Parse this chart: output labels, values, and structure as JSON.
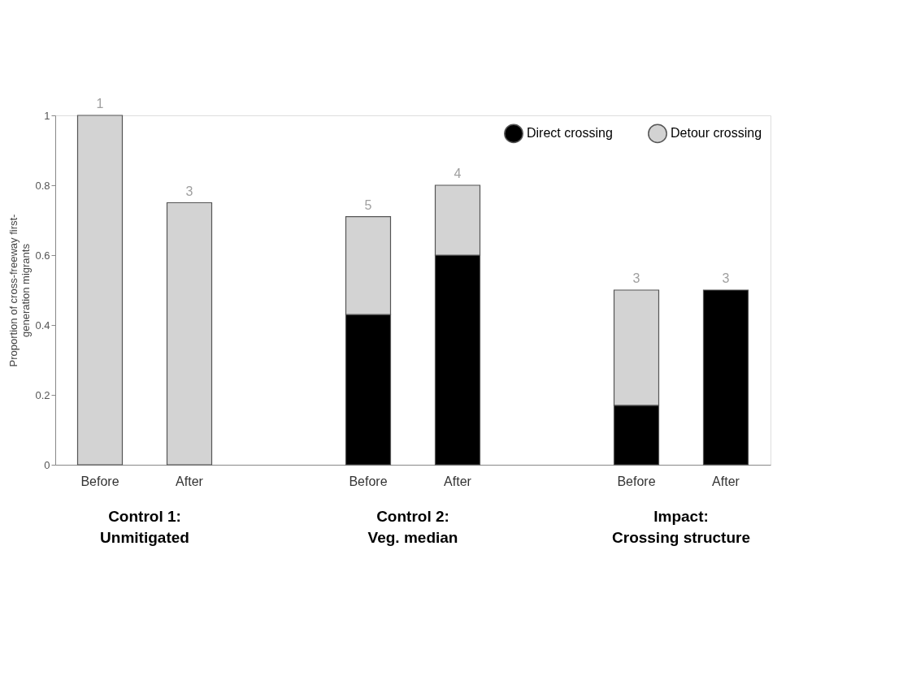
{
  "chart_data": {
    "type": "bar",
    "stacked": true,
    "ylabel": [
      "Proportion of cross-freeway first-",
      "generation migrants"
    ],
    "categories": [
      "Before",
      "After",
      null,
      "Before",
      "After",
      null,
      "Before",
      "After"
    ],
    "series": [
      {
        "name": "Direct crossing",
        "color": "#000000",
        "values": [
          null,
          null,
          null,
          0.43,
          0.6,
          null,
          0.17,
          0.5
        ]
      },
      {
        "name": "Detour crossing",
        "color": "#d3d3d3",
        "values": [
          1,
          0.75,
          null,
          0.28,
          0.2,
          null,
          0.33,
          null
        ]
      }
    ],
    "ylim": [
      0,
      1
    ],
    "yticks": [
      0,
      0.2,
      0.4,
      0.6,
      0.8,
      1
    ],
    "grid": false,
    "legend": "top right",
    "marker": "circle",
    "annotations": [
      "Control 1:\nUnmitigated",
      "Control 2:\nVeg. median",
      "Impact:\nCrossing structure",
      "1",
      "3",
      "5",
      "4",
      "3",
      "3"
    ]
  }
}
